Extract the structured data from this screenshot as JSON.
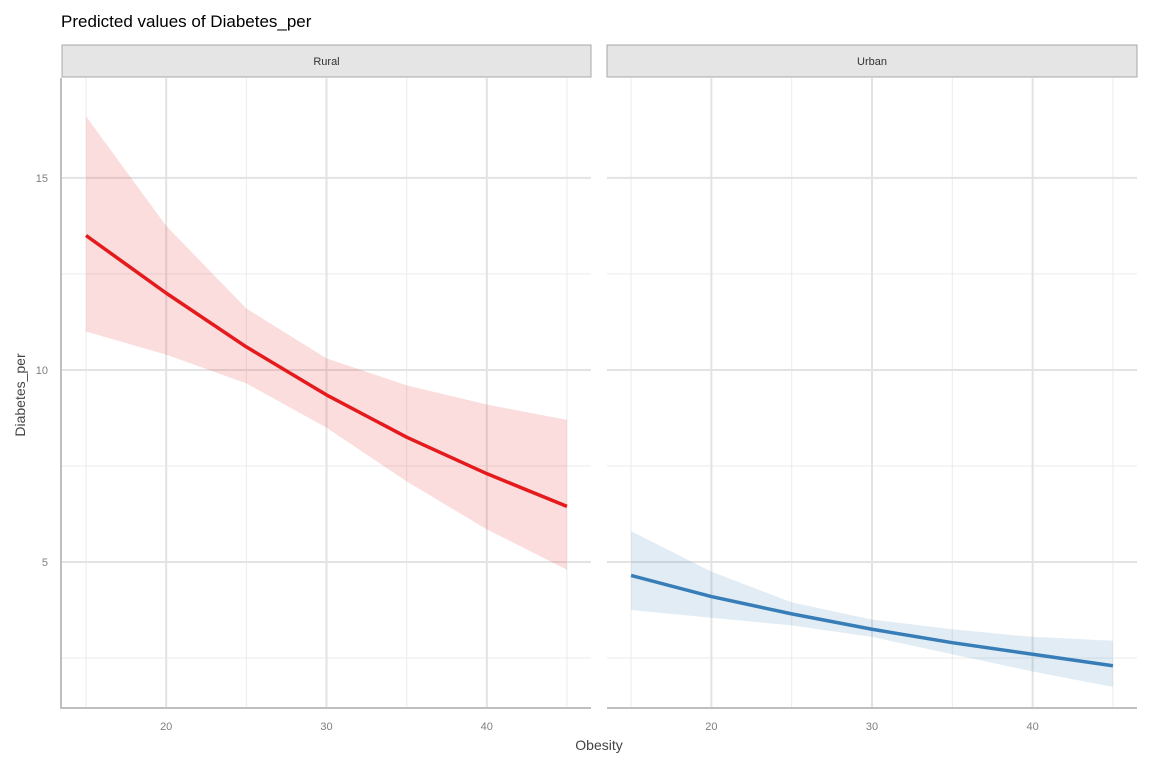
{
  "chart_data": {
    "type": "line",
    "title": "Predicted values of Diabetes_per",
    "xlabel": "Obesity",
    "ylabel": "Diabetes_per",
    "xlim": [
      13.5,
      46.5
    ],
    "ylim": [
      1.2,
      17.6
    ],
    "x_ticks": [
      20,
      30,
      40
    ],
    "x_tick_labels": [
      "20",
      "30",
      "40"
    ],
    "y_ticks": [
      5,
      10,
      15
    ],
    "y_tick_labels": [
      "5",
      "10",
      "15"
    ],
    "y_minor_ticks": [
      2.5,
      7.5,
      12.5
    ],
    "x_minor_ticks": [
      15,
      25,
      35,
      45
    ],
    "grid": true,
    "legend": "none",
    "panels": [
      {
        "label": "Rural",
        "color": "#e41a1c",
        "x": [
          15,
          20,
          25,
          30,
          35,
          40,
          45
        ],
        "y": [
          13.5,
          12.0,
          10.6,
          9.35,
          8.25,
          7.3,
          6.45
        ],
        "lower": [
          11.0,
          10.4,
          9.65,
          8.5,
          7.1,
          5.85,
          4.8
        ],
        "upper": [
          16.6,
          13.75,
          11.6,
          10.3,
          9.6,
          9.1,
          8.7
        ]
      },
      {
        "label": "Urban",
        "color": "#377eb8",
        "x": [
          15,
          20,
          25,
          30,
          35,
          40,
          45
        ],
        "y": [
          4.65,
          4.1,
          3.65,
          3.25,
          2.9,
          2.6,
          2.3
        ],
        "lower": [
          3.75,
          3.55,
          3.35,
          3.05,
          2.6,
          2.15,
          1.75
        ],
        "upper": [
          5.8,
          4.75,
          3.95,
          3.5,
          3.25,
          3.05,
          2.95
        ]
      }
    ]
  }
}
